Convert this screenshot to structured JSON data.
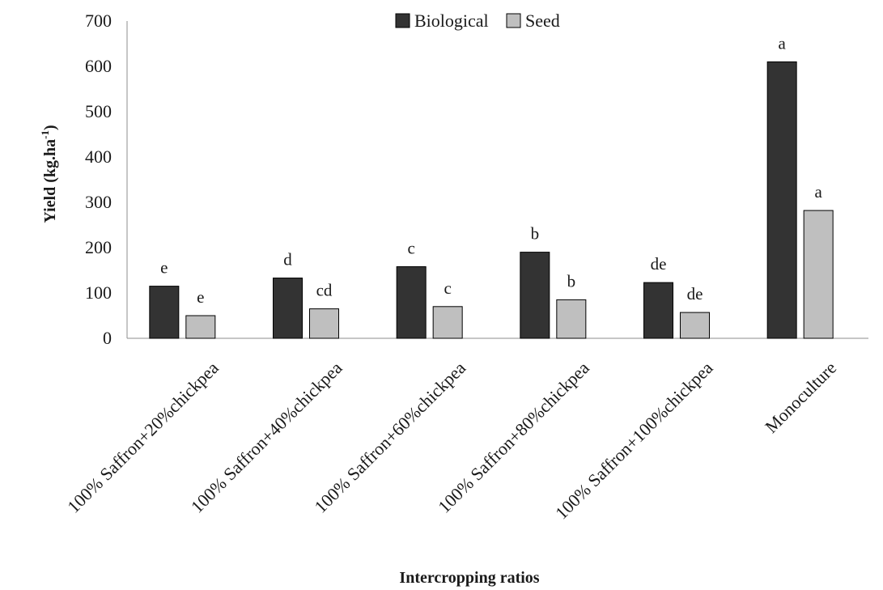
{
  "chart_data": {
    "type": "bar",
    "title": "",
    "xlabel": "Intercropping ratios",
    "ylabel_main": "Yield (kg.ha",
    "ylabel_sup": "-1",
    "ylabel_close": ")",
    "ylim": [
      0,
      700
    ],
    "yticks": [
      0,
      100,
      200,
      300,
      400,
      500,
      600,
      700
    ],
    "legend_position": "top-center",
    "categories": [
      "100% Saffron+20%chickpea",
      "100% Saffron+40%chickpea",
      "100% Saffron+60%chickpea",
      "100% Saffron+80%chickpea",
      "100% Saffron+100%chickpea",
      "Monoculture"
    ],
    "series": [
      {
        "name": "Biological",
        "color": "#333333",
        "values": [
          115,
          133,
          158,
          190,
          123,
          610
        ],
        "labels": [
          "e",
          "d",
          "c",
          "b",
          "de",
          "a"
        ]
      },
      {
        "name": "Seed",
        "color": "#bfbfbf",
        "values": [
          50,
          65,
          70,
          85,
          57,
          282
        ],
        "labels": [
          "e",
          "cd",
          "c",
          "b",
          "de",
          "a"
        ]
      }
    ]
  }
}
